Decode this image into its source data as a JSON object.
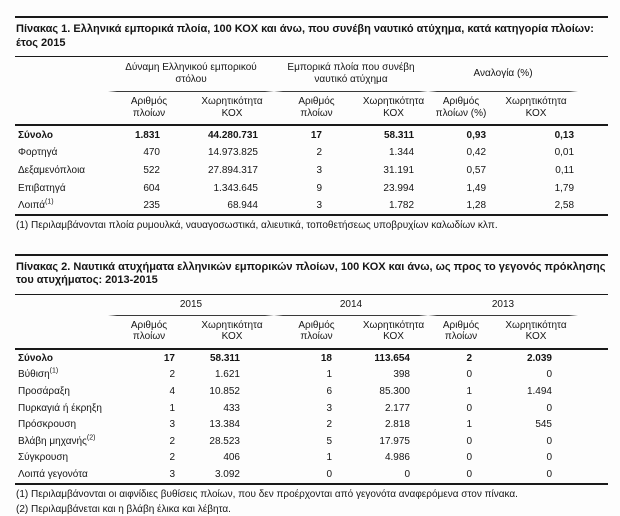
{
  "page": {
    "background": "#fdfdfd",
    "text_color": "#151515",
    "line_color": "#1a1a1a"
  },
  "table1": {
    "title": "Πίνακας 1. Ελληνικά εμπορικά πλοία, 100 ΚΟΧ και άνω, που συνέβη ναυτικό ατύχημα, κατά κατηγορία πλοίων: έτος 2015",
    "column_groups": [
      "Δύναμη Ελληνικού εμπορικού στόλου",
      "Εμπορικά πλοία που συνέβη ναυτικό ατύχημα",
      "Αναλογία (%)"
    ],
    "columns": [
      "Αριθμός πλοίων",
      "Χωρητικότητα ΚΟΧ",
      "Αριθμός πλοίων",
      "Χωρητικότητα ΚΟΧ",
      "Αριθμός πλοίων (%)",
      "Χωρητικότητα ΚΟΧ"
    ],
    "rows": [
      {
        "label": "Σύνολο",
        "sup": "",
        "bold": true,
        "values": [
          "1.831",
          "44.280.731",
          "17",
          "58.311",
          "0,93",
          "0,13"
        ]
      },
      {
        "label": "Φορτηγά",
        "sup": "",
        "bold": false,
        "values": [
          "470",
          "14.973.825",
          "2",
          "1.344",
          "0,42",
          "0,01"
        ]
      },
      {
        "label": "Δεξαμενόπλοια",
        "sup": "",
        "bold": false,
        "values": [
          "522",
          "27.894.317",
          "3",
          "31.191",
          "0,57",
          "0,11"
        ]
      },
      {
        "label": "Επιβατηγά",
        "sup": "",
        "bold": false,
        "values": [
          "604",
          "1.343.645",
          "9",
          "23.994",
          "1,49",
          "1,79"
        ]
      },
      {
        "label": "Λοιπά",
        "sup": "(1)",
        "bold": false,
        "values": [
          "235",
          "68.944",
          "3",
          "1.782",
          "1,28",
          "2,58"
        ]
      }
    ],
    "footnotes": [
      "(1) Περιλαμβάνονται πλοία ρυμουλκά, ναυαγοσωστικά, αλιευτικά, τοποθετήσεως υποβρυχίων καλωδίων κλπ."
    ]
  },
  "table2": {
    "title": "Πίνακας 2. Ναυτικά ατυχήματα ελληνικών εμπορικών πλοίων, 100 ΚΟΧ και άνω, ως προς το γεγονός πρόκλησης του ατυχήματος: 2013-2015",
    "column_groups": [
      "2015",
      "2014",
      "2013"
    ],
    "columns": [
      "Αριθμός πλοίων",
      "Χωρητικότητα ΚΟΧ",
      "Αριθμός πλοίων",
      "Χωρητικότητα ΚΟΧ",
      "Αριθμός πλοίων",
      "Χωρητικότητα ΚΟΧ"
    ],
    "rows": [
      {
        "label": "Σύνολο",
        "sup": "",
        "bold": true,
        "values": [
          "17",
          "58.311",
          "18",
          "113.654",
          "2",
          "2.039"
        ]
      },
      {
        "label": "Βύθιση",
        "sup": "(1)",
        "bold": false,
        "values": [
          "2",
          "1.621",
          "1",
          "398",
          "0",
          "0"
        ]
      },
      {
        "label": "Προσάραξη",
        "sup": "",
        "bold": false,
        "values": [
          "4",
          "10.852",
          "6",
          "85.300",
          "1",
          "1.494"
        ]
      },
      {
        "label": "Πυρκαγιά ή έκρηξη",
        "sup": "",
        "bold": false,
        "values": [
          "1",
          "433",
          "3",
          "2.177",
          "0",
          "0"
        ]
      },
      {
        "label": "Πρόσκρουση",
        "sup": "",
        "bold": false,
        "values": [
          "3",
          "13.384",
          "2",
          "2.818",
          "1",
          "545"
        ]
      },
      {
        "label": "Βλάβη μηχανής",
        "sup": "(2)",
        "bold": false,
        "values": [
          "2",
          "28.523",
          "5",
          "17.975",
          "0",
          "0"
        ]
      },
      {
        "label": "Σύγκρουση",
        "sup": "",
        "bold": false,
        "values": [
          "2",
          "406",
          "1",
          "4.986",
          "0",
          "0"
        ]
      },
      {
        "label": "Λοιπά γεγονότα",
        "sup": "",
        "bold": false,
        "values": [
          "3",
          "3.092",
          "0",
          "0",
          "0",
          "0"
        ]
      }
    ],
    "footnotes": [
      "(1) Περιλαμβάνονται οι αιφνίδιες βυθίσεις πλοίων, που δεν προέρχονται από γεγονότα αναφερόμενα στον πίνακα.",
      "(2) Περιλαμβάνεται και η βλάβη έλικα και λέβητα."
    ]
  }
}
